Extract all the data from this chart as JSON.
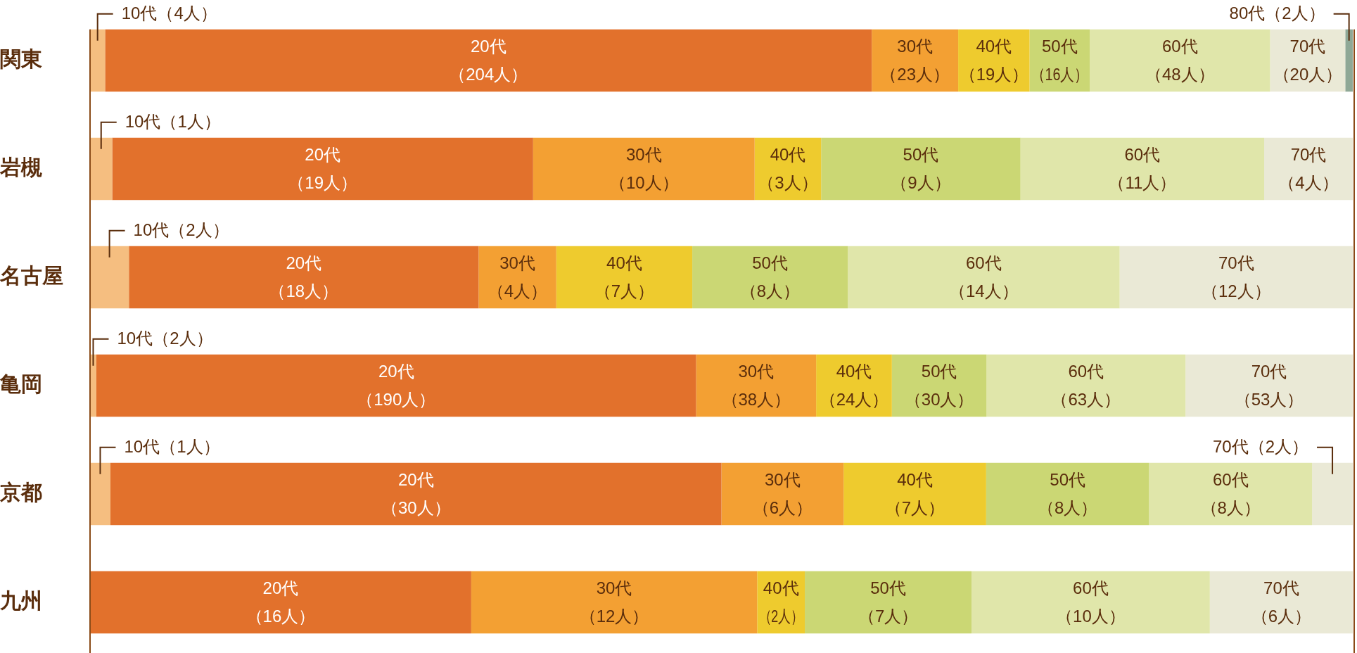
{
  "chart_data": [
    {
      "type": "bar",
      "orientation": "horizontal",
      "stacked": true,
      "tick_labels": "y",
      "categories": [
        "関東"
      ],
      "series": [
        {
          "name": "10代",
          "color": "#f5be80",
          "values": [
            4
          ],
          "value_labels": [
            "（4人）"
          ]
        },
        {
          "name": "20代",
          "color": "#e2712c",
          "values": [
            204
          ],
          "value_labels": [
            "（204人）"
          ]
        },
        {
          "name": "30代",
          "color": "#f3a033",
          "values": [
            23
          ],
          "value_labels": [
            "（23人）"
          ]
        },
        {
          "name": "40代",
          "color": "#eecb2e",
          "values": [
            19
          ],
          "value_labels": [
            "（19人）"
          ]
        },
        {
          "name": "50代",
          "color": "#cbd774",
          "values": [
            16
          ],
          "value_labels": [
            "（16人）"
          ]
        },
        {
          "name": "60代",
          "color": "#e0e6aa",
          "values": [
            48
          ],
          "value_labels": [
            "（48人）"
          ]
        },
        {
          "name": "70代",
          "color": "#eae9d6",
          "values": [
            20
          ],
          "value_labels": [
            "（20人）"
          ]
        },
        {
          "name": "80代",
          "color": "#8fa896",
          "values": [
            2
          ],
          "value_labels": [
            "（2人）"
          ]
        }
      ]
    },
    {
      "type": "bar",
      "orientation": "horizontal",
      "stacked": true,
      "tick_labels": "y",
      "categories": [
        "岩槻"
      ],
      "series": [
        {
          "name": "10代",
          "color": "#f5be80",
          "values": [
            1
          ],
          "value_labels": [
            "（1人）"
          ]
        },
        {
          "name": "20代",
          "color": "#e2712c",
          "values": [
            19
          ],
          "value_labels": [
            "（19人）"
          ]
        },
        {
          "name": "30代",
          "color": "#f3a033",
          "values": [
            10
          ],
          "value_labels": [
            "（10人）"
          ]
        },
        {
          "name": "40代",
          "color": "#eecb2e",
          "values": [
            3
          ],
          "value_labels": [
            "（3人）"
          ]
        },
        {
          "name": "50代",
          "color": "#cbd774",
          "values": [
            9
          ],
          "value_labels": [
            "（9人）"
          ]
        },
        {
          "name": "60代",
          "color": "#e0e6aa",
          "values": [
            11
          ],
          "value_labels": [
            "（11人）"
          ]
        },
        {
          "name": "70代",
          "color": "#eae9d6",
          "values": [
            4
          ],
          "value_labels": [
            "（4人）"
          ]
        }
      ]
    },
    {
      "type": "bar",
      "orientation": "horizontal",
      "stacked": true,
      "tick_labels": "y",
      "categories": [
        "名古屋"
      ],
      "series": [
        {
          "name": "10代",
          "color": "#f5be80",
          "values": [
            2
          ],
          "value_labels": [
            "（2人）"
          ]
        },
        {
          "name": "20代",
          "color": "#e2712c",
          "values": [
            18
          ],
          "value_labels": [
            "（18人）"
          ]
        },
        {
          "name": "30代",
          "color": "#f3a033",
          "values": [
            4
          ],
          "value_labels": [
            "（4人）"
          ]
        },
        {
          "name": "40代",
          "color": "#eecb2e",
          "values": [
            7
          ],
          "value_labels": [
            "（7人）"
          ]
        },
        {
          "name": "50代",
          "color": "#cbd774",
          "values": [
            8
          ],
          "value_labels": [
            "（8人）"
          ]
        },
        {
          "name": "60代",
          "color": "#e0e6aa",
          "values": [
            14
          ],
          "value_labels": [
            "（14人）"
          ]
        },
        {
          "name": "70代",
          "color": "#eae9d6",
          "values": [
            12
          ],
          "value_labels": [
            "（12人）"
          ]
        }
      ]
    },
    {
      "type": "bar",
      "orientation": "horizontal",
      "stacked": true,
      "tick_labels": "y",
      "categories": [
        "亀岡"
      ],
      "series": [
        {
          "name": "10代",
          "color": "#f5be80",
          "values": [
            2
          ],
          "value_labels": [
            "（2人）"
          ]
        },
        {
          "name": "20代",
          "color": "#e2712c",
          "values": [
            190
          ],
          "value_labels": [
            "（190人）"
          ]
        },
        {
          "name": "30代",
          "color": "#f3a033",
          "values": [
            38
          ],
          "value_labels": [
            "（38人）"
          ]
        },
        {
          "name": "40代",
          "color": "#eecb2e",
          "values": [
            24
          ],
          "value_labels": [
            "（24人）"
          ]
        },
        {
          "name": "50代",
          "color": "#cbd774",
          "values": [
            30
          ],
          "value_labels": [
            "（30人）"
          ]
        },
        {
          "name": "60代",
          "color": "#e0e6aa",
          "values": [
            63
          ],
          "value_labels": [
            "（63人）"
          ]
        },
        {
          "name": "70代",
          "color": "#eae9d6",
          "values": [
            53
          ],
          "value_labels": [
            "（53人）"
          ]
        }
      ]
    },
    {
      "type": "bar",
      "orientation": "horizontal",
      "stacked": true,
      "tick_labels": "y",
      "categories": [
        "京都"
      ],
      "series": [
        {
          "name": "10代",
          "color": "#f5be80",
          "values": [
            1
          ],
          "value_labels": [
            "（1人）"
          ]
        },
        {
          "name": "20代",
          "color": "#e2712c",
          "values": [
            30
          ],
          "value_labels": [
            "（30人）"
          ]
        },
        {
          "name": "30代",
          "color": "#f3a033",
          "values": [
            6
          ],
          "value_labels": [
            "（6人）"
          ]
        },
        {
          "name": "40代",
          "color": "#eecb2e",
          "values": [
            7
          ],
          "value_labels": [
            "（7人）"
          ]
        },
        {
          "name": "50代",
          "color": "#cbd774",
          "values": [
            8
          ],
          "value_labels": [
            "（8人）"
          ]
        },
        {
          "name": "60代",
          "color": "#e0e6aa",
          "values": [
            8
          ],
          "value_labels": [
            "（8人）"
          ]
        },
        {
          "name": "70代",
          "color": "#eae9d6",
          "values": [
            2
          ],
          "value_labels": [
            "（2人）"
          ]
        }
      ]
    },
    {
      "type": "bar",
      "orientation": "horizontal",
      "stacked": true,
      "tick_labels": "y",
      "categories": [
        "九州"
      ],
      "series": [
        {
          "name": "20代",
          "color": "#e2712c",
          "values": [
            16
          ],
          "value_labels": [
            "（16人）"
          ]
        },
        {
          "name": "30代",
          "color": "#f3a033",
          "values": [
            12
          ],
          "value_labels": [
            "（12人）"
          ]
        },
        {
          "name": "40代",
          "color": "#eecb2e",
          "values": [
            2
          ],
          "value_labels": [
            "（2人）"
          ]
        },
        {
          "name": "50代",
          "color": "#cbd774",
          "values": [
            7
          ],
          "value_labels": [
            "（7人）"
          ]
        },
        {
          "name": "60代",
          "color": "#e0e6aa",
          "values": [
            10
          ],
          "value_labels": [
            "（10人）"
          ]
        },
        {
          "name": "70代",
          "color": "#eae9d6",
          "values": [
            6
          ],
          "value_labels": [
            "（6人）"
          ]
        }
      ]
    }
  ]
}
